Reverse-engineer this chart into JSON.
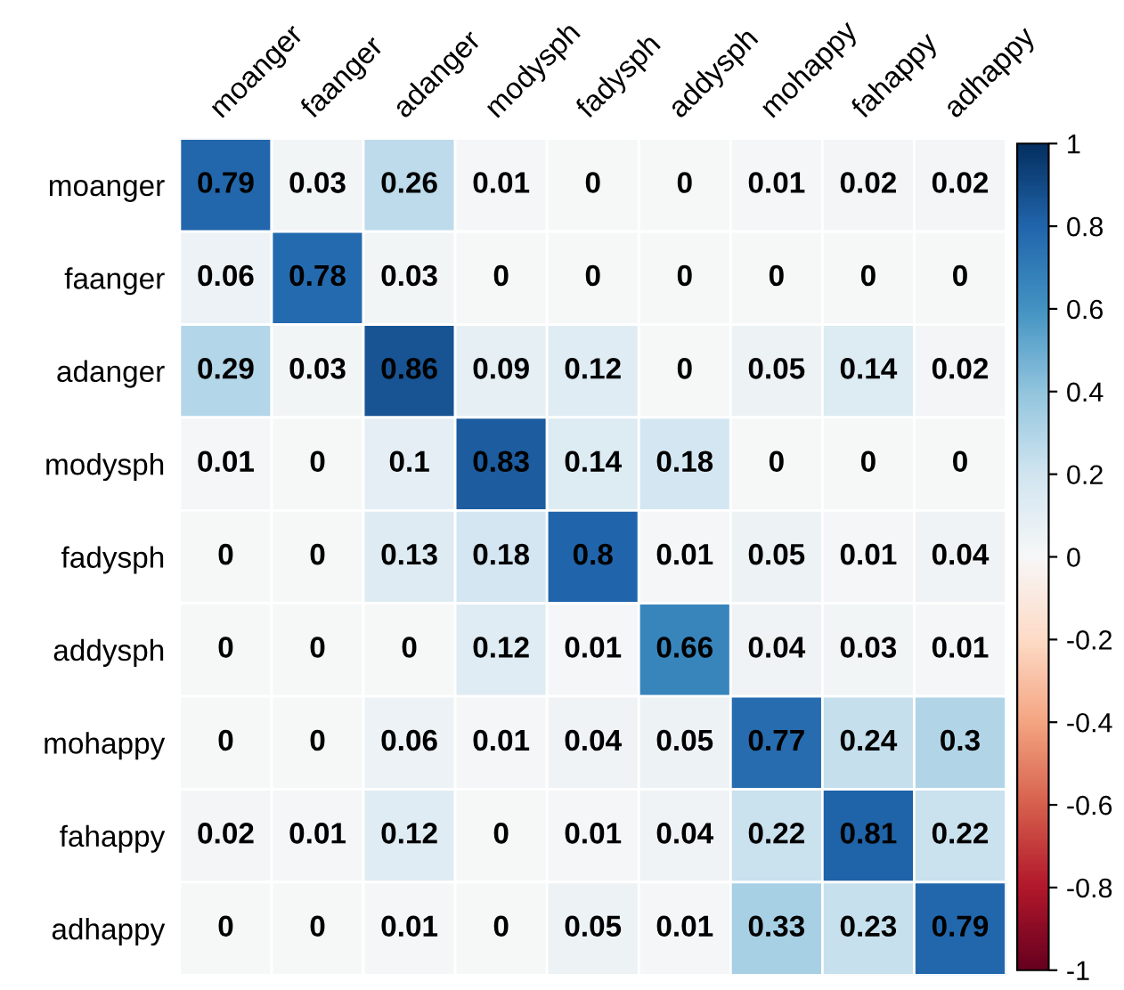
{
  "chart_data": {
    "type": "heatmap",
    "categories": [
      "moanger",
      "faanger",
      "adanger",
      "modysph",
      "fadysph",
      "addysph",
      "mohappy",
      "fahappy",
      "adhappy"
    ],
    "y_categories": [
      "moanger",
      "faanger",
      "adanger",
      "modysph",
      "fadysph",
      "addysph",
      "mohappy",
      "fahappy",
      "adhappy"
    ],
    "cells": [
      [
        0.79,
        0.03,
        0.26,
        0.01,
        0,
        0,
        0.01,
        0.02,
        0.02
      ],
      [
        0.06,
        0.78,
        0.03,
        0,
        0,
        0,
        0,
        0,
        0
      ],
      [
        0.29,
        0.03,
        0.86,
        0.09,
        0.12,
        0,
        0.05,
        0.14,
        0.02
      ],
      [
        0.01,
        0,
        0.1,
        0.83,
        0.14,
        0.18,
        0,
        0,
        0
      ],
      [
        0,
        0,
        0.13,
        0.18,
        0.8,
        0.01,
        0.05,
        0.01,
        0.04
      ],
      [
        0,
        0,
        0,
        0.12,
        0.01,
        0.66,
        0.04,
        0.03,
        0.01
      ],
      [
        0,
        0,
        0.06,
        0.01,
        0.04,
        0.05,
        0.77,
        0.24,
        0.3
      ],
      [
        0.02,
        0.01,
        0.12,
        0,
        0.01,
        0.04,
        0.22,
        0.81,
        0.22
      ],
      [
        0,
        0,
        0.01,
        0,
        0.05,
        0.01,
        0.33,
        0.23,
        0.79
      ]
    ],
    "clim": [
      -1,
      1
    ],
    "cticks": [
      1,
      0.8,
      0.6,
      0.4,
      0.2,
      0,
      -0.2,
      -0.4,
      -0.6,
      -0.8,
      -1
    ],
    "data_labels": true
  }
}
